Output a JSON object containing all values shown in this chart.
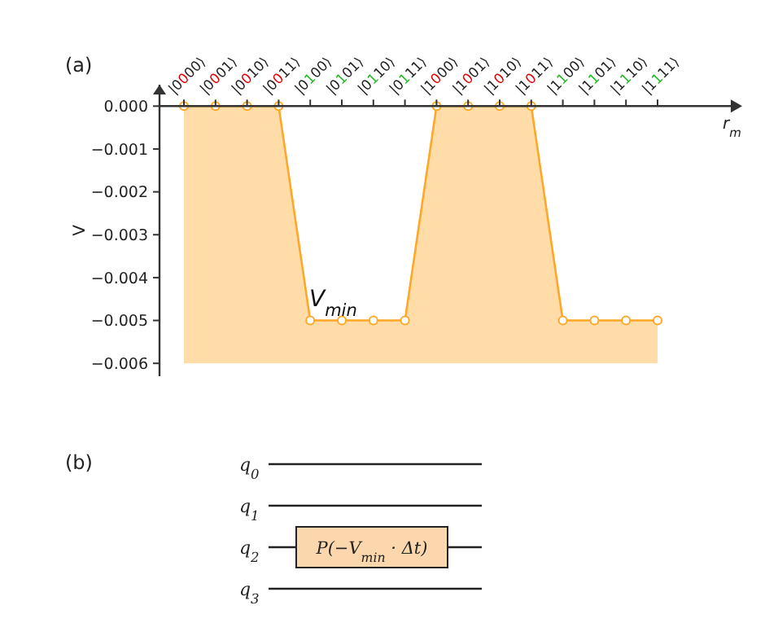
{
  "chart_data": {
    "type": "line",
    "grid": false,
    "title": "(a)",
    "xlabel": "r$_{m}$",
    "ylabel": "V",
    "categories": [
      "|0000⟩",
      "|0001⟩",
      "|0010⟩",
      "|0011⟩",
      "|0100⟩",
      "|0101⟩",
      "|0110⟩",
      "|0111⟩",
      "|1000⟩",
      "|1001⟩",
      "|1010⟩",
      "|1011⟩",
      "|1100⟩",
      "|1101⟩",
      "|1110⟩",
      "|1111⟩"
    ],
    "series": [
      {
        "color": "#ffa726",
        "values": [
          0,
          0,
          0,
          0,
          -0.005,
          -0.005,
          -0.005,
          -0.005,
          0,
          0,
          0,
          0,
          -0.005,
          -0.005,
          -0.005,
          -0.005
        ],
        "lower": [
          -0.006,
          -0.006,
          -0.006,
          -0.006,
          -0.006,
          -0.006,
          -0.006,
          -0.006,
          -0.006,
          -0.006,
          -0.006,
          -0.006,
          -0.006,
          -0.006,
          -0.006,
          -0.006
        ],
        "upper": [
          0,
          0,
          0,
          0,
          -0.005,
          -0.005,
          -0.005,
          -0.005,
          0,
          0,
          0,
          0,
          -0.005,
          -0.005,
          -0.005,
          -0.005
        ]
      }
    ],
    "ylim": [
      -0.0063,
      0.0005
    ],
    "yticks": [
      {
        "value": 0,
        "label": "0.000"
      },
      {
        "value": -0.001,
        "label": "−0.001"
      },
      {
        "value": -0.002,
        "label": "−0.002"
      },
      {
        "value": -0.003,
        "label": "−0.003"
      },
      {
        "value": -0.004,
        "label": "−0.004"
      },
      {
        "value": -0.005,
        "label": "−0.005"
      },
      {
        "value": -0.006,
        "label": "−0.006"
      }
    ],
    "marker": "circle",
    "annotations": [
      "V$_{min}$",
      "(b)",
      "q$_{0}$",
      "q$_{1}$",
      "q$_{2}$",
      "q$_{3}$",
      "P(−V$_{min}$ · Δt)"
    ]
  }
}
